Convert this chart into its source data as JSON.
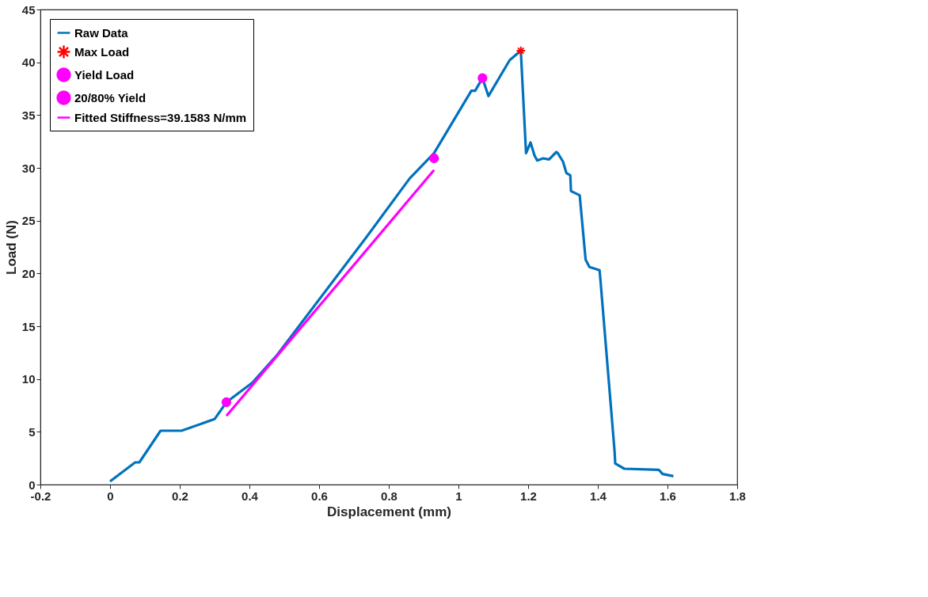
{
  "chart_data": {
    "type": "line",
    "xlabel": "Displacement (mm)",
    "ylabel": "Load (N)",
    "xlim": [
      -0.2,
      1.8
    ],
    "ylim": [
      0,
      45
    ],
    "xticks": [
      -0.2,
      0,
      0.2,
      0.4,
      0.6,
      0.8,
      1,
      1.2,
      1.4,
      1.6,
      1.8
    ],
    "yticks": [
      0,
      5,
      10,
      15,
      20,
      25,
      30,
      35,
      40,
      45
    ],
    "grid": false,
    "legend": "top left",
    "series": [
      {
        "name": "Raw Data",
        "type": "line",
        "color": "#0072bd",
        "marker": "none",
        "x": [
          0,
          0.072,
          0.084,
          0.145,
          0.205,
          0.3,
          0.334,
          0.41,
          0.48,
          0.735,
          0.86,
          0.93,
          1.037,
          1.048,
          1.069,
          1.086,
          1.147,
          1.179,
          1.194,
          1.207,
          1.218,
          1.226,
          1.243,
          1.26,
          1.281,
          1.285,
          1.3,
          1.31,
          1.321,
          1.323,
          1.348,
          1.365,
          1.376,
          1.405,
          1.408,
          1.448,
          1.45,
          1.476,
          1.575,
          1.586,
          1.617
        ],
        "values": [
          0.3,
          2.1,
          2.1,
          5.1,
          5.1,
          6.2,
          7.8,
          9.7,
          12.3,
          23.4,
          29,
          31.4,
          37.3,
          37.3,
          38.5,
          36.8,
          40.2,
          41.1,
          31.4,
          32.4,
          31.2,
          30.7,
          30.9,
          30.8,
          31.5,
          31.4,
          30.6,
          29.5,
          29.3,
          27.8,
          27.4,
          21.3,
          20.6,
          20.3,
          19.2,
          3.2,
          2.0,
          1.5,
          1.4,
          1.0,
          0.8
        ]
      },
      {
        "name": "Max Load",
        "type": "scatter",
        "color": "#ff0000",
        "marker": "cross",
        "x": [
          1.179
        ],
        "values": [
          41.1
        ]
      },
      {
        "name": "Yield Load",
        "type": "scatter",
        "color": "#ff00ff",
        "marker": "circle",
        "x": [
          1.069
        ],
        "values": [
          38.5
        ]
      },
      {
        "name": "20/80% Yield",
        "type": "scatter",
        "color": "#ff00ff",
        "marker": "circle",
        "x": [
          0.334,
          0.93
        ],
        "values": [
          7.8,
          30.9
        ]
      },
      {
        "name": "Fitted Stiffness=39.1583 N/mm",
        "type": "line",
        "color": "#ff00ff",
        "marker": "none",
        "x": [
          0.334,
          0.93
        ],
        "values": [
          6.5,
          29.8
        ]
      }
    ]
  }
}
